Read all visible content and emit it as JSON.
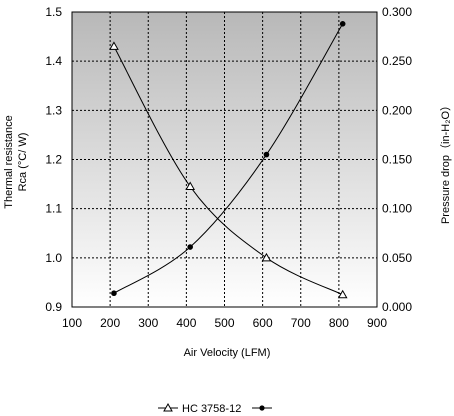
{
  "chart_data": {
    "type": "line",
    "title": "",
    "xlabel": "Air Velocity (LFM)",
    "ylabel_left": [
      "Thermal resistance",
      "Rca (°C/ W)"
    ],
    "ylabel_right": "Pressure drop（in-H₂O）",
    "xlim": [
      100,
      900
    ],
    "ylim_left": [
      0.9,
      1.5
    ],
    "ylim_right": [
      0.0,
      0.3
    ],
    "x_ticks": [
      "100",
      "200",
      "300",
      "400",
      "500",
      "600",
      "700",
      "800",
      "900"
    ],
    "y_left_ticks": [
      "0.9",
      "1.0",
      "1.1",
      "1.2",
      "1.3",
      "1.4",
      "1.5"
    ],
    "y_right_ticks": [
      "0.000",
      "0.050",
      "0.100",
      "0.150",
      "0.200",
      "0.250",
      "0.300"
    ],
    "grid": true,
    "background": "gradient gray (dark top, white bottom)",
    "legend_position": "bottom-center",
    "series": [
      {
        "name": "HC 3758-12",
        "axis": "left",
        "marker": "open-triangle",
        "x": [
          210,
          410,
          610,
          810
        ],
        "y": [
          1.43,
          1.145,
          1.0,
          0.925
        ]
      },
      {
        "axis": "right",
        "marker": "filled-circle",
        "x": [
          210,
          410,
          610,
          810
        ],
        "y": [
          0.014,
          0.061,
          0.155,
          0.288
        ]
      }
    ],
    "colors": {
      "gradient_top": "#b8b8b8",
      "gradient_bottom": "#ffffff",
      "grid": "#000000",
      "line": "#000000"
    }
  }
}
